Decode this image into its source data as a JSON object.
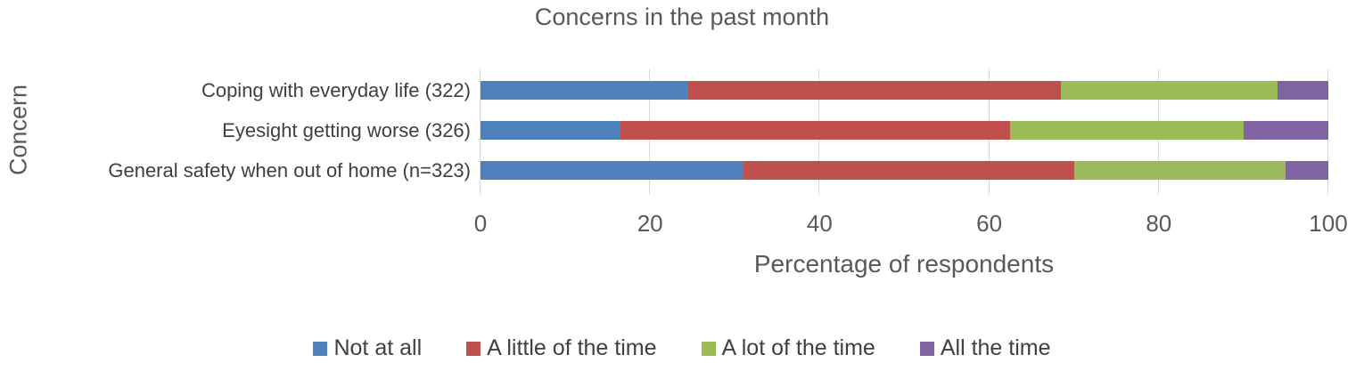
{
  "chart_data": {
    "type": "bar",
    "orientation": "horizontal",
    "stacked": true,
    "title": "Concerns in the past month",
    "xlabel": "Percentage of respondents",
    "ylabel": "Concern",
    "xlim": [
      0,
      100
    ],
    "x_ticks": [
      0,
      20,
      40,
      60,
      80,
      100
    ],
    "grid": "vertical-gridlines",
    "legend_position": "bottom",
    "gridline_color": "#d9d9d9",
    "categories": [
      "Coping with everyday life (322)",
      "Eyesight getting worse (326)",
      "General safety when out of home (n=323)"
    ],
    "series": [
      {
        "name": "Not at all",
        "color": "#4F81BD",
        "values": [
          24.5,
          16.5,
          31.0
        ]
      },
      {
        "name": "A little of the time",
        "color": "#C0504D",
        "values": [
          44.0,
          46.0,
          39.0
        ]
      },
      {
        "name": "A lot of the time",
        "color": "#9BBB59",
        "values": [
          25.5,
          27.5,
          25.0
        ]
      },
      {
        "name": "All the time",
        "color": "#8064A2",
        "values": [
          6.0,
          10.0,
          5.0
        ]
      }
    ]
  }
}
